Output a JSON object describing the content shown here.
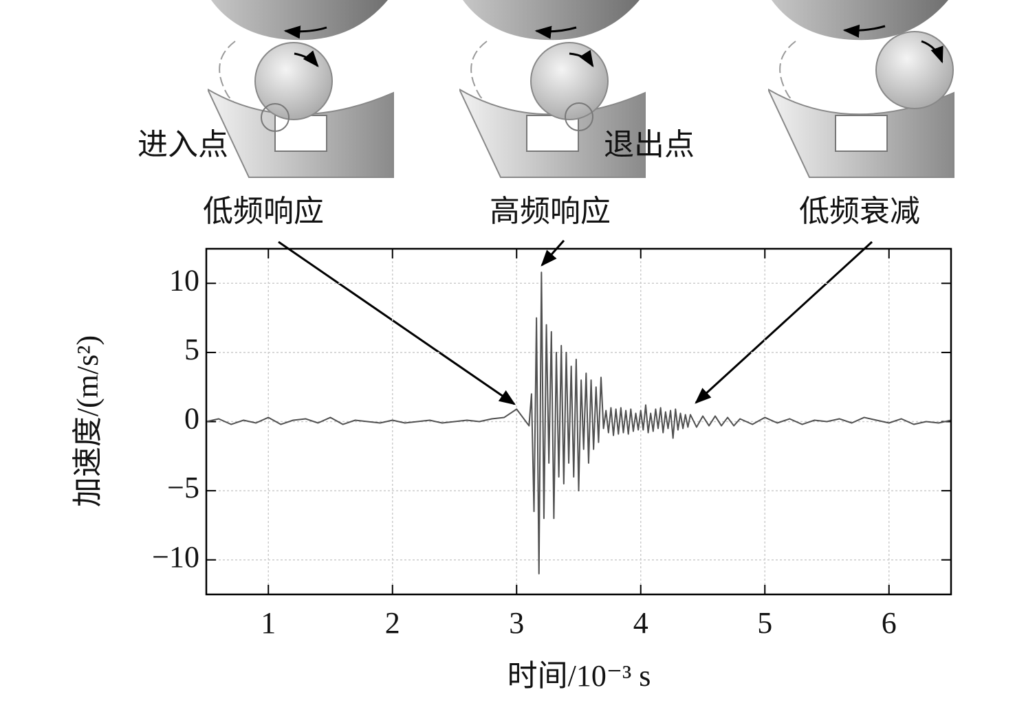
{
  "chart_data": {
    "type": "line",
    "illustration_labels": [
      "进入点",
      "退出点"
    ],
    "annotations": [
      "低频响应",
      "高频响应",
      "低频衰减"
    ],
    "x_label": "时间/10⁻³ s",
    "y_label": "加速度/(m/s²)",
    "x": [
      0.5,
      0.6,
      0.7,
      0.8,
      0.9,
      1.0,
      1.1,
      1.2,
      1.3,
      1.4,
      1.5,
      1.6,
      1.7,
      1.8,
      1.9,
      2.0,
      2.1,
      2.2,
      2.3,
      2.4,
      2.5,
      2.6,
      2.7,
      2.8,
      2.9,
      2.95,
      3.0,
      3.05,
      3.1,
      3.12,
      3.14,
      3.16,
      3.18,
      3.2,
      3.22,
      3.24,
      3.26,
      3.28,
      3.3,
      3.32,
      3.34,
      3.36,
      3.38,
      3.4,
      3.42,
      3.44,
      3.46,
      3.48,
      3.5,
      3.52,
      3.54,
      3.56,
      3.58,
      3.6,
      3.62,
      3.64,
      3.66,
      3.68,
      3.7,
      3.72,
      3.74,
      3.76,
      3.78,
      3.8,
      3.82,
      3.84,
      3.86,
      3.88,
      3.9,
      3.92,
      3.94,
      3.96,
      3.98,
      4.0,
      4.02,
      4.04,
      4.06,
      4.08,
      4.1,
      4.12,
      4.14,
      4.16,
      4.18,
      4.2,
      4.22,
      4.24,
      4.26,
      4.28,
      4.3,
      4.32,
      4.34,
      4.36,
      4.38,
      4.4,
      4.45,
      4.5,
      4.55,
      4.6,
      4.65,
      4.7,
      4.75,
      4.8,
      4.9,
      5.0,
      5.1,
      5.2,
      5.3,
      5.4,
      5.5,
      5.6,
      5.7,
      5.8,
      5.9,
      6.0,
      6.1,
      6.2,
      6.3,
      6.4,
      6.5
    ],
    "series": [
      {
        "color": "#505050",
        "values": [
          0,
          0.2,
          -0.2,
          0.1,
          -0.1,
          0.3,
          -0.2,
          0.1,
          0.2,
          -0.1,
          0.3,
          -0.2,
          0.1,
          0,
          -0.1,
          0.1,
          -0.1,
          0,
          0.1,
          -0.1,
          0,
          0.1,
          0,
          0.2,
          0.3,
          0.6,
          0.9,
          0.3,
          -0.3,
          2.0,
          -6.5,
          7.5,
          -11,
          10.8,
          -7,
          7,
          -3,
          6.5,
          -7,
          5,
          -4,
          5.5,
          -4.5,
          5,
          -3,
          4,
          -4,
          4.5,
          -5,
          3,
          -2,
          3.5,
          -3,
          3,
          -2,
          2.5,
          -1.5,
          3.2,
          -0.5,
          0.8,
          -0.8,
          1,
          -1,
          0.9,
          -0.9,
          1,
          -0.8,
          0.8,
          -0.9,
          0.9,
          -0.7,
          0.6,
          -0.6,
          0.8,
          -0.6,
          1.2,
          -0.8,
          0.6,
          -0.7,
          0.9,
          -0.5,
          1,
          -0.8,
          0.7,
          -0.5,
          0.8,
          -1.2,
          0.9,
          -0.6,
          0.6,
          -0.5,
          0.5,
          -0.4,
          0.5,
          -0.4,
          0.4,
          -0.3,
          0.4,
          -0.3,
          0.3,
          -0.3,
          0.2,
          -0.2,
          0.3,
          -0.1,
          0.2,
          -0.2,
          0.1,
          0,
          0.2,
          -0.1,
          0.3,
          0.1,
          -0.1,
          0.2,
          -0.2,
          0,
          -0.1,
          0.1
        ]
      }
    ],
    "xlim": [
      0.5,
      6.5
    ],
    "xticks": [
      1,
      2,
      3,
      4,
      5,
      6
    ],
    "ylim": [
      -12.5,
      12.5
    ],
    "yticks": [
      {
        "value": -10,
        "label": "−10"
      },
      {
        "value": -5,
        "label": "−5"
      },
      0,
      5,
      10
    ],
    "grid": true
  }
}
